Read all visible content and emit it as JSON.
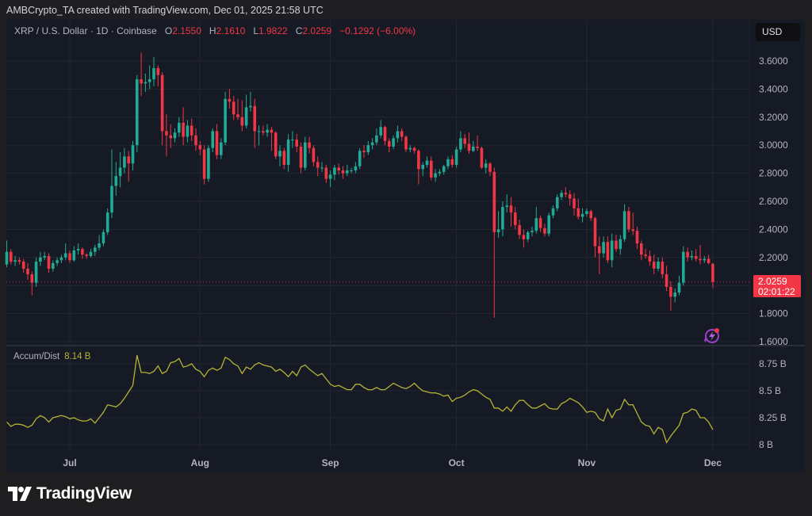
{
  "header": {
    "credit": "AMBCrypto_TA created with TradingView.com, Dec 01, 2025 21:58 UTC"
  },
  "legend": {
    "symbol": "XRP / U.S. Dollar · 1D · Coinbase",
    "o_label": "O",
    "o": "2.1550",
    "h_label": "H",
    "h": "2.1610",
    "l_label": "L",
    "l": "1.9822",
    "c_label": "C",
    "c": "2.0259",
    "change": "−0.1292 (−6.00%)"
  },
  "currency_button": "USD",
  "last_price": {
    "price": "2.0259",
    "countdown": "02:01:22"
  },
  "indicator": {
    "name": "Accum/Dist",
    "value": "8.14 B"
  },
  "brand": {
    "name": "TradingView"
  },
  "colors": {
    "up": "#22ab94",
    "down": "#f23645",
    "ad_line": "#b5b335",
    "background": "#161a25",
    "grid": "#232733"
  },
  "icons": {
    "alert": "lightning-bolt-sparkle-icon",
    "logo": "tradingview-logo-icon"
  },
  "chart_data": [
    {
      "type": "candlestick",
      "start_date": "2025-06-16",
      "interval": "1D",
      "ylim": [
        1.6,
        3.7
      ],
      "y_ticks": [
        "3.6000",
        "3.4000",
        "3.2000",
        "3.0000",
        "2.8000",
        "2.6000",
        "2.4000",
        "2.2000",
        "1.8000",
        "1.6000"
      ],
      "x_ticks": [
        "Jul",
        "Aug",
        "Sep",
        "Oct",
        "Nov",
        "Dec"
      ],
      "grid": true,
      "ohlc": [
        [
          2.15,
          2.32,
          2.13,
          2.24
        ],
        [
          2.24,
          2.26,
          2.15,
          2.17
        ],
        [
          2.17,
          2.21,
          2.14,
          2.18
        ],
        [
          2.18,
          2.2,
          2.15,
          2.17
        ],
        [
          2.17,
          2.19,
          2.09,
          2.12
        ],
        [
          2.12,
          2.16,
          2.04,
          2.08
        ],
        [
          2.08,
          2.1,
          1.93,
          2.02
        ],
        [
          2.02,
          2.2,
          1.99,
          2.17
        ],
        [
          2.17,
          2.24,
          2.14,
          2.2
        ],
        [
          2.2,
          2.24,
          2.18,
          2.21
        ],
        [
          2.21,
          2.23,
          2.09,
          2.12
        ],
        [
          2.12,
          2.18,
          2.1,
          2.16
        ],
        [
          2.16,
          2.2,
          2.14,
          2.18
        ],
        [
          2.18,
          2.22,
          2.16,
          2.2
        ],
        [
          2.2,
          2.3,
          2.18,
          2.23
        ],
        [
          2.23,
          2.25,
          2.16,
          2.18
        ],
        [
          2.18,
          2.28,
          2.17,
          2.25
        ],
        [
          2.25,
          2.3,
          2.22,
          2.26
        ],
        [
          2.26,
          2.27,
          2.19,
          2.22
        ],
        [
          2.22,
          2.23,
          2.19,
          2.21
        ],
        [
          2.21,
          2.26,
          2.2,
          2.24
        ],
        [
          2.24,
          2.29,
          2.21,
          2.27
        ],
        [
          2.27,
          2.36,
          2.25,
          2.3
        ],
        [
          2.3,
          2.4,
          2.28,
          2.38
        ],
        [
          2.38,
          2.55,
          2.36,
          2.52
        ],
        [
          2.52,
          2.97,
          2.48,
          2.71
        ],
        [
          2.71,
          2.88,
          2.64,
          2.78
        ],
        [
          2.78,
          2.95,
          2.7,
          2.84
        ],
        [
          2.84,
          2.98,
          2.8,
          2.92
        ],
        [
          2.92,
          2.96,
          2.74,
          2.87
        ],
        [
          2.87,
          3.03,
          2.82,
          3.0
        ],
        [
          3.0,
          3.5,
          2.95,
          3.47
        ],
        [
          3.47,
          3.66,
          3.35,
          3.44
        ],
        [
          3.44,
          3.51,
          3.38,
          3.45
        ],
        [
          3.45,
          3.57,
          3.4,
          3.47
        ],
        [
          3.47,
          3.63,
          3.42,
          3.55
        ],
        [
          3.55,
          3.57,
          3.42,
          3.5
        ],
        [
          3.5,
          3.52,
          3.0,
          3.1
        ],
        [
          3.1,
          3.22,
          2.92,
          3.07
        ],
        [
          3.07,
          3.15,
          2.98,
          3.05
        ],
        [
          3.05,
          3.12,
          3.02,
          3.09
        ],
        [
          3.09,
          3.2,
          3.06,
          3.16
        ],
        [
          3.16,
          3.27,
          3.0,
          3.06
        ],
        [
          3.06,
          3.18,
          3.02,
          3.14
        ],
        [
          3.14,
          3.19,
          3.03,
          3.07
        ],
        [
          3.07,
          3.12,
          2.96,
          3.0
        ],
        [
          3.0,
          3.03,
          2.93,
          2.97
        ],
        [
          2.97,
          3.0,
          2.72,
          2.76
        ],
        [
          2.76,
          3.0,
          2.74,
          2.98
        ],
        [
          2.98,
          3.12,
          2.95,
          3.1
        ],
        [
          3.1,
          3.15,
          2.9,
          2.93
        ],
        [
          2.93,
          3.05,
          2.9,
          3.02
        ],
        [
          3.02,
          3.38,
          3.0,
          3.33
        ],
        [
          3.33,
          3.4,
          3.26,
          3.31
        ],
        [
          3.31,
          3.35,
          3.18,
          3.22
        ],
        [
          3.22,
          3.33,
          3.18,
          3.2
        ],
        [
          3.2,
          3.32,
          3.1,
          3.14
        ],
        [
          3.14,
          3.36,
          3.12,
          3.27
        ],
        [
          3.27,
          3.38,
          3.24,
          3.28
        ],
        [
          3.28,
          3.33,
          2.98,
          3.1
        ],
        [
          3.1,
          3.14,
          3.0,
          3.1
        ],
        [
          3.1,
          3.14,
          3.07,
          3.09
        ],
        [
          3.09,
          3.15,
          3.06,
          3.11
        ],
        [
          3.11,
          3.13,
          2.96,
          3.09
        ],
        [
          3.09,
          3.1,
          2.9,
          2.92
        ],
        [
          2.92,
          3.0,
          2.85,
          2.96
        ],
        [
          2.96,
          2.98,
          2.83,
          2.86
        ],
        [
          2.86,
          3.08,
          2.81,
          3.04
        ],
        [
          3.04,
          3.1,
          2.98,
          3.04
        ],
        [
          3.04,
          3.08,
          2.95,
          2.99
        ],
        [
          2.99,
          3.02,
          2.8,
          2.84
        ],
        [
          2.84,
          3.06,
          2.82,
          3.02
        ],
        [
          3.02,
          3.06,
          2.94,
          2.98
        ],
        [
          2.98,
          3.0,
          2.85,
          2.88
        ],
        [
          2.88,
          2.92,
          2.78,
          2.84
        ],
        [
          2.84,
          2.88,
          2.81,
          2.84
        ],
        [
          2.84,
          2.86,
          2.73,
          2.76
        ],
        [
          2.76,
          2.82,
          2.7,
          2.79
        ],
        [
          2.79,
          2.86,
          2.75,
          2.84
        ],
        [
          2.84,
          2.87,
          2.79,
          2.82
        ],
        [
          2.82,
          2.85,
          2.76,
          2.8
        ],
        [
          2.8,
          2.86,
          2.78,
          2.82
        ],
        [
          2.82,
          2.84,
          2.8,
          2.82
        ],
        [
          2.82,
          2.88,
          2.8,
          2.85
        ],
        [
          2.85,
          2.98,
          2.83,
          2.96
        ],
        [
          2.96,
          3.0,
          2.91,
          2.95
        ],
        [
          2.95,
          3.03,
          2.93,
          3.0
        ],
        [
          3.0,
          3.05,
          2.97,
          3.02
        ],
        [
          3.02,
          3.12,
          3.0,
          3.07
        ],
        [
          3.07,
          3.18,
          3.05,
          3.13
        ],
        [
          3.13,
          3.14,
          3.0,
          3.03
        ],
        [
          3.03,
          3.05,
          2.95,
          2.99
        ],
        [
          2.99,
          3.07,
          2.97,
          3.05
        ],
        [
          3.05,
          3.14,
          3.02,
          3.1
        ],
        [
          3.1,
          3.12,
          3.03,
          3.06
        ],
        [
          3.06,
          3.07,
          2.95,
          2.97
        ],
        [
          2.97,
          3.0,
          2.95,
          2.98
        ],
        [
          2.98,
          2.99,
          2.94,
          2.96
        ],
        [
          2.96,
          2.97,
          2.72,
          2.83
        ],
        [
          2.83,
          2.88,
          2.78,
          2.86
        ],
        [
          2.86,
          2.92,
          2.84,
          2.89
        ],
        [
          2.89,
          2.92,
          2.75,
          2.77
        ],
        [
          2.77,
          2.83,
          2.74,
          2.8
        ],
        [
          2.8,
          2.83,
          2.78,
          2.81
        ],
        [
          2.81,
          2.86,
          2.79,
          2.85
        ],
        [
          2.85,
          2.92,
          2.83,
          2.9
        ],
        [
          2.9,
          2.93,
          2.84,
          2.86
        ],
        [
          2.86,
          2.99,
          2.84,
          2.97
        ],
        [
          2.97,
          3.1,
          2.95,
          3.05
        ],
        [
          3.05,
          3.08,
          2.98,
          3.01
        ],
        [
          3.01,
          3.09,
          2.94,
          2.96
        ],
        [
          2.96,
          3.03,
          2.95,
          2.99
        ],
        [
          2.99,
          3.07,
          2.96,
          2.98
        ],
        [
          2.98,
          2.99,
          2.83,
          2.84
        ],
        [
          2.84,
          2.9,
          2.8,
          2.87
        ],
        [
          2.87,
          2.88,
          2.78,
          2.81
        ],
        [
          2.81,
          2.84,
          1.77,
          2.38
        ],
        [
          2.38,
          2.53,
          2.34,
          2.4
        ],
        [
          2.4,
          2.6,
          2.35,
          2.56
        ],
        [
          2.56,
          2.65,
          2.52,
          2.57
        ],
        [
          2.57,
          2.63,
          2.42,
          2.52
        ],
        [
          2.52,
          2.56,
          2.4,
          2.43
        ],
        [
          2.43,
          2.47,
          2.33,
          2.36
        ],
        [
          2.36,
          2.4,
          2.27,
          2.33
        ],
        [
          2.33,
          2.39,
          2.31,
          2.38
        ],
        [
          2.38,
          2.42,
          2.35,
          2.39
        ],
        [
          2.39,
          2.56,
          2.37,
          2.48
        ],
        [
          2.48,
          2.5,
          2.38,
          2.41
        ],
        [
          2.41,
          2.44,
          2.35,
          2.37
        ],
        [
          2.37,
          2.52,
          2.35,
          2.5
        ],
        [
          2.5,
          2.57,
          2.48,
          2.55
        ],
        [
          2.55,
          2.65,
          2.53,
          2.63
        ],
        [
          2.63,
          2.68,
          2.61,
          2.66
        ],
        [
          2.66,
          2.7,
          2.63,
          2.65
        ],
        [
          2.65,
          2.68,
          2.57,
          2.62
        ],
        [
          2.62,
          2.66,
          2.5,
          2.55
        ],
        [
          2.55,
          2.62,
          2.47,
          2.49
        ],
        [
          2.49,
          2.55,
          2.45,
          2.51
        ],
        [
          2.51,
          2.55,
          2.49,
          2.53
        ],
        [
          2.53,
          2.54,
          2.46,
          2.48
        ],
        [
          2.48,
          2.49,
          2.2,
          2.28
        ],
        [
          2.28,
          2.35,
          2.08,
          2.23
        ],
        [
          2.23,
          2.35,
          2.2,
          2.31
        ],
        [
          2.31,
          2.35,
          2.16,
          2.18
        ],
        [
          2.18,
          2.37,
          2.13,
          2.32
        ],
        [
          2.32,
          2.36,
          2.24,
          2.26
        ],
        [
          2.26,
          2.36,
          2.22,
          2.33
        ],
        [
          2.33,
          2.58,
          2.31,
          2.53
        ],
        [
          2.53,
          2.56,
          2.38,
          2.4
        ],
        [
          2.4,
          2.52,
          2.36,
          2.39
        ],
        [
          2.39,
          2.42,
          2.26,
          2.3
        ],
        [
          2.3,
          2.32,
          2.18,
          2.22
        ],
        [
          2.22,
          2.26,
          2.19,
          2.21
        ],
        [
          2.21,
          2.25,
          2.14,
          2.17
        ],
        [
          2.17,
          2.22,
          2.08,
          2.12
        ],
        [
          2.12,
          2.2,
          2.1,
          2.17
        ],
        [
          2.17,
          2.2,
          2.05,
          2.08
        ],
        [
          2.08,
          2.14,
          1.96,
          1.99
        ],
        [
          1.99,
          2.03,
          1.82,
          1.92
        ],
        [
          1.92,
          1.98,
          1.88,
          1.95
        ],
        [
          1.95,
          2.07,
          1.93,
          2.02
        ],
        [
          2.02,
          2.28,
          2.0,
          2.24
        ],
        [
          2.24,
          2.27,
          2.17,
          2.2
        ],
        [
          2.2,
          2.25,
          2.18,
          2.21
        ],
        [
          2.21,
          2.26,
          2.17,
          2.19
        ],
        [
          2.19,
          2.29,
          2.15,
          2.18
        ],
        [
          2.18,
          2.21,
          2.16,
          2.19
        ],
        [
          2.19,
          2.22,
          2.15,
          2.16
        ],
        [
          2.155,
          2.161,
          1.9822,
          2.0259
        ]
      ]
    },
    {
      "type": "line",
      "name": "Accum/Dist",
      "unit": "B",
      "ylim": [
        7.95,
        8.9
      ],
      "y_ticks": [
        "8.75 B",
        "8.5 B",
        "8.25 B",
        "8 B"
      ],
      "grid": true,
      "values": [
        8.21,
        8.17,
        8.19,
        8.19,
        8.18,
        8.16,
        8.18,
        8.24,
        8.27,
        8.25,
        8.21,
        8.25,
        8.26,
        8.27,
        8.26,
        8.24,
        8.25,
        8.23,
        8.22,
        8.22,
        8.24,
        8.2,
        8.25,
        8.3,
        8.37,
        8.36,
        8.35,
        8.38,
        8.43,
        8.49,
        8.55,
        8.83,
        8.67,
        8.67,
        8.66,
        8.68,
        8.73,
        8.66,
        8.68,
        8.76,
        8.77,
        8.8,
        8.72,
        8.73,
        8.75,
        8.7,
        8.68,
        8.63,
        8.69,
        8.71,
        8.69,
        8.71,
        8.81,
        8.79,
        8.75,
        8.73,
        8.66,
        8.72,
        8.7,
        8.74,
        8.76,
        8.74,
        8.73,
        8.72,
        8.68,
        8.7,
        8.67,
        8.63,
        8.68,
        8.64,
        8.72,
        8.74,
        8.7,
        8.67,
        8.64,
        8.66,
        8.61,
        8.56,
        8.54,
        8.55,
        8.53,
        8.51,
        8.51,
        8.56,
        8.56,
        8.53,
        8.51,
        8.51,
        8.53,
        8.51,
        8.51,
        8.54,
        8.57,
        8.55,
        8.53,
        8.52,
        8.54,
        8.57,
        8.53,
        8.5,
        8.49,
        8.48,
        8.48,
        8.47,
        8.45,
        8.46,
        8.4,
        8.43,
        8.44,
        8.46,
        8.49,
        8.51,
        8.5,
        8.47,
        8.44,
        8.42,
        8.34,
        8.34,
        8.31,
        8.35,
        8.31,
        8.37,
        8.41,
        8.41,
        8.37,
        8.34,
        8.34,
        8.36,
        8.38,
        8.34,
        8.33,
        8.33,
        8.38,
        8.4,
        8.43,
        8.41,
        8.39,
        8.35,
        8.3,
        8.31,
        8.3,
        8.24,
        8.22,
        8.33,
        8.25,
        8.32,
        8.33,
        8.42,
        8.37,
        8.37,
        8.29,
        8.21,
        8.18,
        8.17,
        8.1,
        8.16,
        8.14,
        8.02,
        8.08,
        8.13,
        8.18,
        8.29,
        8.3,
        8.33,
        8.32,
        8.25,
        8.25,
        8.21,
        8.14
      ]
    }
  ]
}
